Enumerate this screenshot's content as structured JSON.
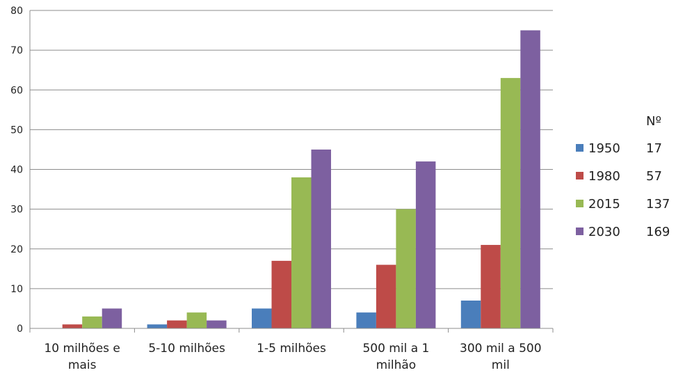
{
  "chart_data": {
    "type": "bar",
    "categories": [
      [
        "10 milhões e",
        "mais"
      ],
      [
        "5-10 milhões"
      ],
      [
        "1-5 milhões"
      ],
      [
        "500 mil a 1",
        "milhão"
      ],
      [
        "300 mil a 500",
        "mil"
      ]
    ],
    "series": [
      {
        "name": "1950",
        "color": "#4a7ebb",
        "values": [
          0,
          1,
          5,
          4,
          7
        ]
      },
      {
        "name": "1980",
        "color": "#be4b48",
        "values": [
          1,
          2,
          17,
          16,
          21
        ]
      },
      {
        "name": "2015",
        "color": "#98b954",
        "values": [
          3,
          4,
          38,
          30,
          63
        ]
      },
      {
        "name": "2030",
        "color": "#7d60a0",
        "values": [
          5,
          2,
          45,
          42,
          75
        ]
      }
    ],
    "ylim": [
      0,
      80
    ],
    "yticks": [
      0,
      10,
      20,
      30,
      40,
      50,
      60,
      70,
      80
    ],
    "grid": true,
    "legend": {
      "placement": "right",
      "count_header": "Nº",
      "counts": [
        "17",
        "57",
        "137",
        "169"
      ]
    }
  }
}
